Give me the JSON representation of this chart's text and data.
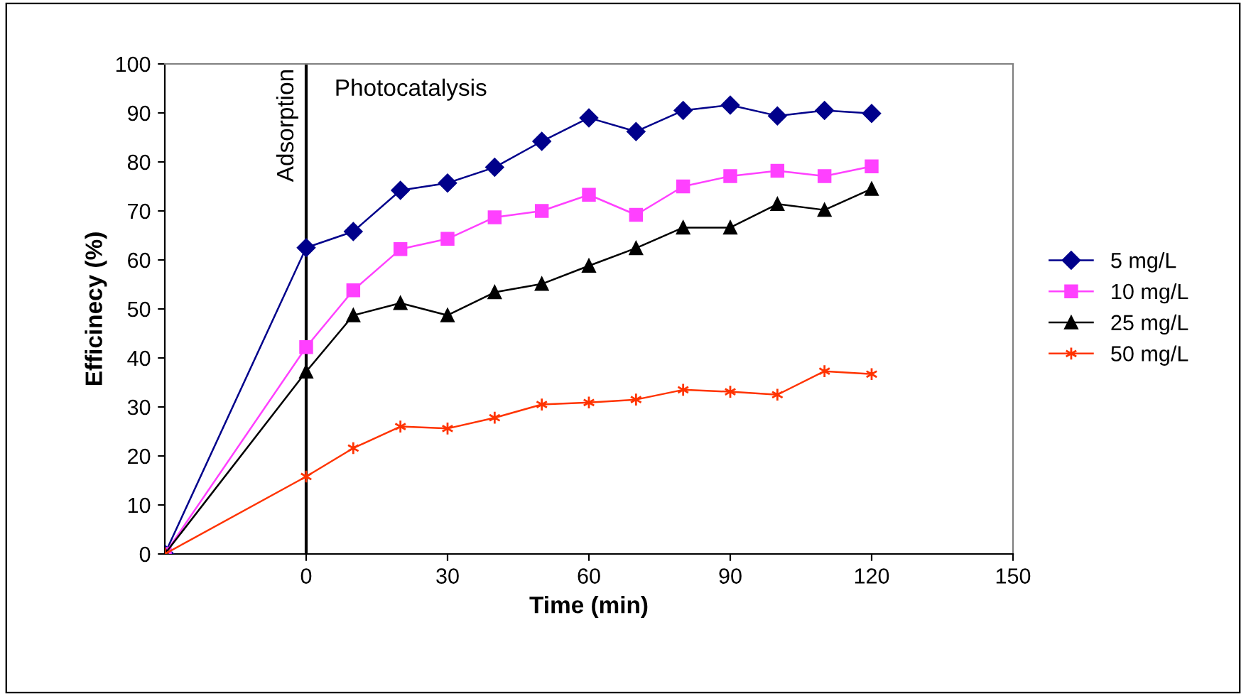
{
  "chart_data": {
    "type": "line",
    "xlabel": "Time (min)",
    "ylabel": "Efficinecy (%)",
    "x": [
      -30,
      0,
      10,
      20,
      30,
      40,
      50,
      60,
      70,
      80,
      90,
      100,
      110,
      120
    ],
    "xlim": [
      -30,
      150
    ],
    "xticks": [
      0,
      30,
      60,
      90,
      120,
      150
    ],
    "ylim": [
      0,
      100
    ],
    "yticks": [
      0,
      10,
      20,
      30,
      40,
      50,
      60,
      70,
      80,
      90,
      100
    ],
    "grid": false,
    "legend": "right",
    "line_style": "solid",
    "series": [
      {
        "name": "5 mg/L",
        "color": "#00008b",
        "marker": "diamond",
        "values": [
          0,
          62.5,
          65.8,
          74.2,
          75.7,
          78.9,
          84.2,
          89,
          86.2,
          90.5,
          91.6,
          89.4,
          90.5,
          89.9
        ]
      },
      {
        "name": "10 mg/L",
        "color": "#ff40ff",
        "marker": "square",
        "values": [
          0,
          42.2,
          53.8,
          62.2,
          64.3,
          68.7,
          70,
          73.3,
          69.2,
          75,
          77.1,
          78.2,
          77.1,
          79.1
        ]
      },
      {
        "name": "25 mg/L",
        "color": "#000000",
        "marker": "triangle",
        "values": [
          0,
          37.2,
          48.7,
          51.2,
          48.7,
          53.4,
          55.1,
          58.8,
          62.4,
          66.6,
          66.6,
          71.4,
          70.2,
          74.5
        ]
      },
      {
        "name": "50 mg/L",
        "color": "#ff3300",
        "marker": "cross",
        "values": [
          0,
          15.8,
          21.6,
          26,
          25.6,
          27.8,
          30.5,
          30.9,
          31.5,
          33.5,
          33.1,
          32.5,
          37.3,
          36.7
        ]
      }
    ],
    "ref_lines": [
      {
        "axis": "x",
        "value": 0,
        "label": "Adsorption",
        "color": "#000000"
      }
    ],
    "annotations": [
      "Photocatalysis"
    ]
  }
}
